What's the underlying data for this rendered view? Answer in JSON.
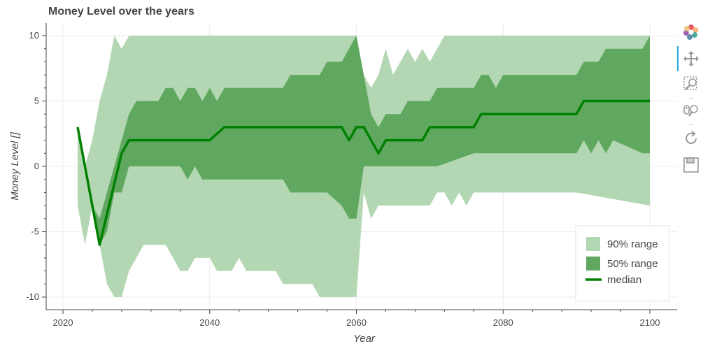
{
  "chart_data": {
    "type": "area",
    "title": "Money Level over the years",
    "xlabel": "Year",
    "ylabel": "Money Level []",
    "xlim": [
      2019,
      2104
    ],
    "ylim": [
      -11,
      10.5
    ],
    "xticks": [
      2020,
      2040,
      2060,
      2080,
      2100
    ],
    "yticks": [
      -10,
      -5,
      0,
      5,
      10
    ],
    "grid": true,
    "legend_position": "bottom-right",
    "legend": [
      {
        "label": "90% range",
        "color": "#b3d7b3"
      },
      {
        "label": "50% range",
        "color": "#60a860"
      },
      {
        "label": "median",
        "color": "#008000"
      }
    ],
    "series": [
      {
        "name": "90% range",
        "color": "#b3d7b3",
        "x": [
          2022,
          2023,
          2024,
          2025,
          2026,
          2027,
          2028,
          2029,
          2030,
          2031,
          2033,
          2034,
          2035,
          2036,
          2037,
          2038,
          2039,
          2040,
          2041,
          2042,
          2043,
          2044,
          2045,
          2046,
          2047,
          2048,
          2049,
          2050,
          2051,
          2053,
          2054,
          2055,
          2056,
          2057,
          2058,
          2059,
          2060,
          2061,
          2062,
          2063,
          2064,
          2065,
          2066,
          2067,
          2068,
          2069,
          2070,
          2071,
          2072,
          2073,
          2074,
          2075,
          2076,
          2077,
          2080,
          2090,
          2100
        ],
        "upper": [
          3,
          0,
          2,
          5,
          7,
          10,
          9,
          10,
          10,
          10,
          10,
          10,
          10,
          10,
          10,
          10,
          10,
          10,
          10,
          10,
          10,
          10,
          10,
          10,
          10,
          10,
          10,
          10,
          10,
          10,
          10,
          10,
          10,
          10,
          10,
          10,
          10,
          7,
          6,
          7,
          9,
          7,
          8,
          9,
          8,
          9,
          8,
          9,
          10,
          10,
          10,
          10,
          10,
          10,
          10,
          10,
          10
        ],
        "lower": [
          -3,
          -6,
          -3,
          -6,
          -9,
          -10,
          -10,
          -8,
          -7,
          -6,
          -6,
          -6,
          -7,
          -8,
          -8,
          -7,
          -7,
          -7,
          -8,
          -8,
          -8,
          -7,
          -8,
          -8,
          -8,
          -8,
          -8,
          -9,
          -9,
          -9,
          -9,
          -10,
          -10,
          -10,
          -10,
          -10,
          -10,
          -2,
          -4,
          -3,
          -3,
          -3,
          -3,
          -3,
          -3,
          -3,
          -3,
          -2,
          -2,
          -3,
          -2,
          -3,
          -2,
          -2,
          -2,
          -2,
          -3
        ]
      },
      {
        "name": "50% range",
        "color": "#60a860",
        "x": [
          2022,
          2023,
          2024,
          2025,
          2026,
          2027,
          2028,
          2029,
          2030,
          2032,
          2033,
          2034,
          2035,
          2036,
          2037,
          2038,
          2039,
          2040,
          2041,
          2042,
          2050,
          2051,
          2055,
          2056,
          2058,
          2059,
          2060,
          2061,
          2062,
          2063,
          2064,
          2066,
          2067,
          2070,
          2071,
          2076,
          2077,
          2078,
          2079,
          2080,
          2090,
          2091,
          2092,
          2093,
          2094,
          2095,
          2099,
          2100
        ],
        "upper": [
          3,
          0,
          -3,
          -4,
          -2,
          0,
          2,
          4,
          5,
          5,
          5,
          6,
          6,
          5,
          6,
          6,
          5,
          6,
          5,
          6,
          6,
          7,
          7,
          8,
          8,
          9,
          10,
          7,
          4,
          3,
          4,
          4,
          5,
          5,
          6,
          6,
          7,
          7,
          6,
          7,
          7,
          8,
          8,
          8,
          9,
          9,
          9,
          10
        ],
        "lower": [
          3,
          0,
          -3,
          -6,
          -5,
          -2,
          -2,
          0,
          0,
          0,
          0,
          0,
          0,
          0,
          -1,
          0,
          -1,
          -1,
          -1,
          -1,
          -1,
          -2,
          -2,
          -2,
          -3,
          -4,
          -4,
          0,
          0,
          0,
          0,
          0,
          0,
          0,
          0,
          1,
          1,
          1,
          1,
          1,
          1,
          2,
          1,
          2,
          1,
          2,
          1,
          1
        ]
      },
      {
        "name": "median",
        "color": "#008000",
        "x": [
          2022,
          2025,
          2028,
          2029,
          2030,
          2040,
          2042,
          2058,
          2059,
          2060,
          2061,
          2063,
          2064,
          2069,
          2070,
          2076,
          2077,
          2090,
          2091,
          2100
        ],
        "y": [
          3,
          -6,
          1,
          2,
          2,
          2,
          3,
          3,
          2,
          3,
          3,
          1,
          2,
          2,
          3,
          3,
          4,
          4,
          5,
          5
        ]
      }
    ]
  },
  "toolbar": {
    "tools": [
      {
        "name": "bokeh-logo-icon"
      },
      {
        "name": "pan-icon"
      },
      {
        "name": "box-zoom-icon"
      },
      {
        "name": "wheel-zoom-icon"
      },
      {
        "name": "reset-icon"
      },
      {
        "name": "save-icon"
      }
    ]
  }
}
